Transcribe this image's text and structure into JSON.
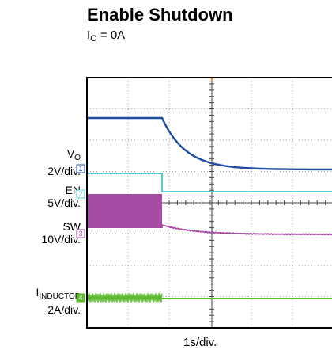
{
  "title": "Enable Shutdown",
  "subtitle": {
    "main": "I",
    "sub": "O",
    "rest": " = 0A"
  },
  "channels": [
    {
      "id": "vo",
      "name_main": "V",
      "name_sub": "O",
      "scale": "2V/div.",
      "marker": "1",
      "color": "#1f4ea1"
    },
    {
      "id": "en",
      "name_main": "EN",
      "name_sub": "",
      "scale": "5V/div.",
      "marker": "2",
      "color": "#55c8d6"
    },
    {
      "id": "sw",
      "name_main": "SW",
      "name_sub": "",
      "scale": "10V/div.",
      "marker": "3",
      "color": "#a64ca6"
    },
    {
      "id": "il",
      "name_main": "I",
      "name_sub": "INDUCTOR",
      "scale": "2A/div.",
      "marker": "4",
      "color": "#5cba2e"
    }
  ],
  "xlabel": "1s/div.",
  "chart_data": {
    "type": "line",
    "xlabel": "1s/div.",
    "grid": true,
    "x_divisions": 10,
    "y_divisions": 8,
    "trigger_color": "#e87722",
    "series": [
      {
        "name": "VO",
        "color": "#1f4ea1"
      },
      {
        "name": "EN",
        "color": "#55c8d6"
      },
      {
        "name": "SW",
        "color": "#a64ca6"
      },
      {
        "name": "IINDUCTOR",
        "color": "#5cba2e"
      }
    ]
  }
}
